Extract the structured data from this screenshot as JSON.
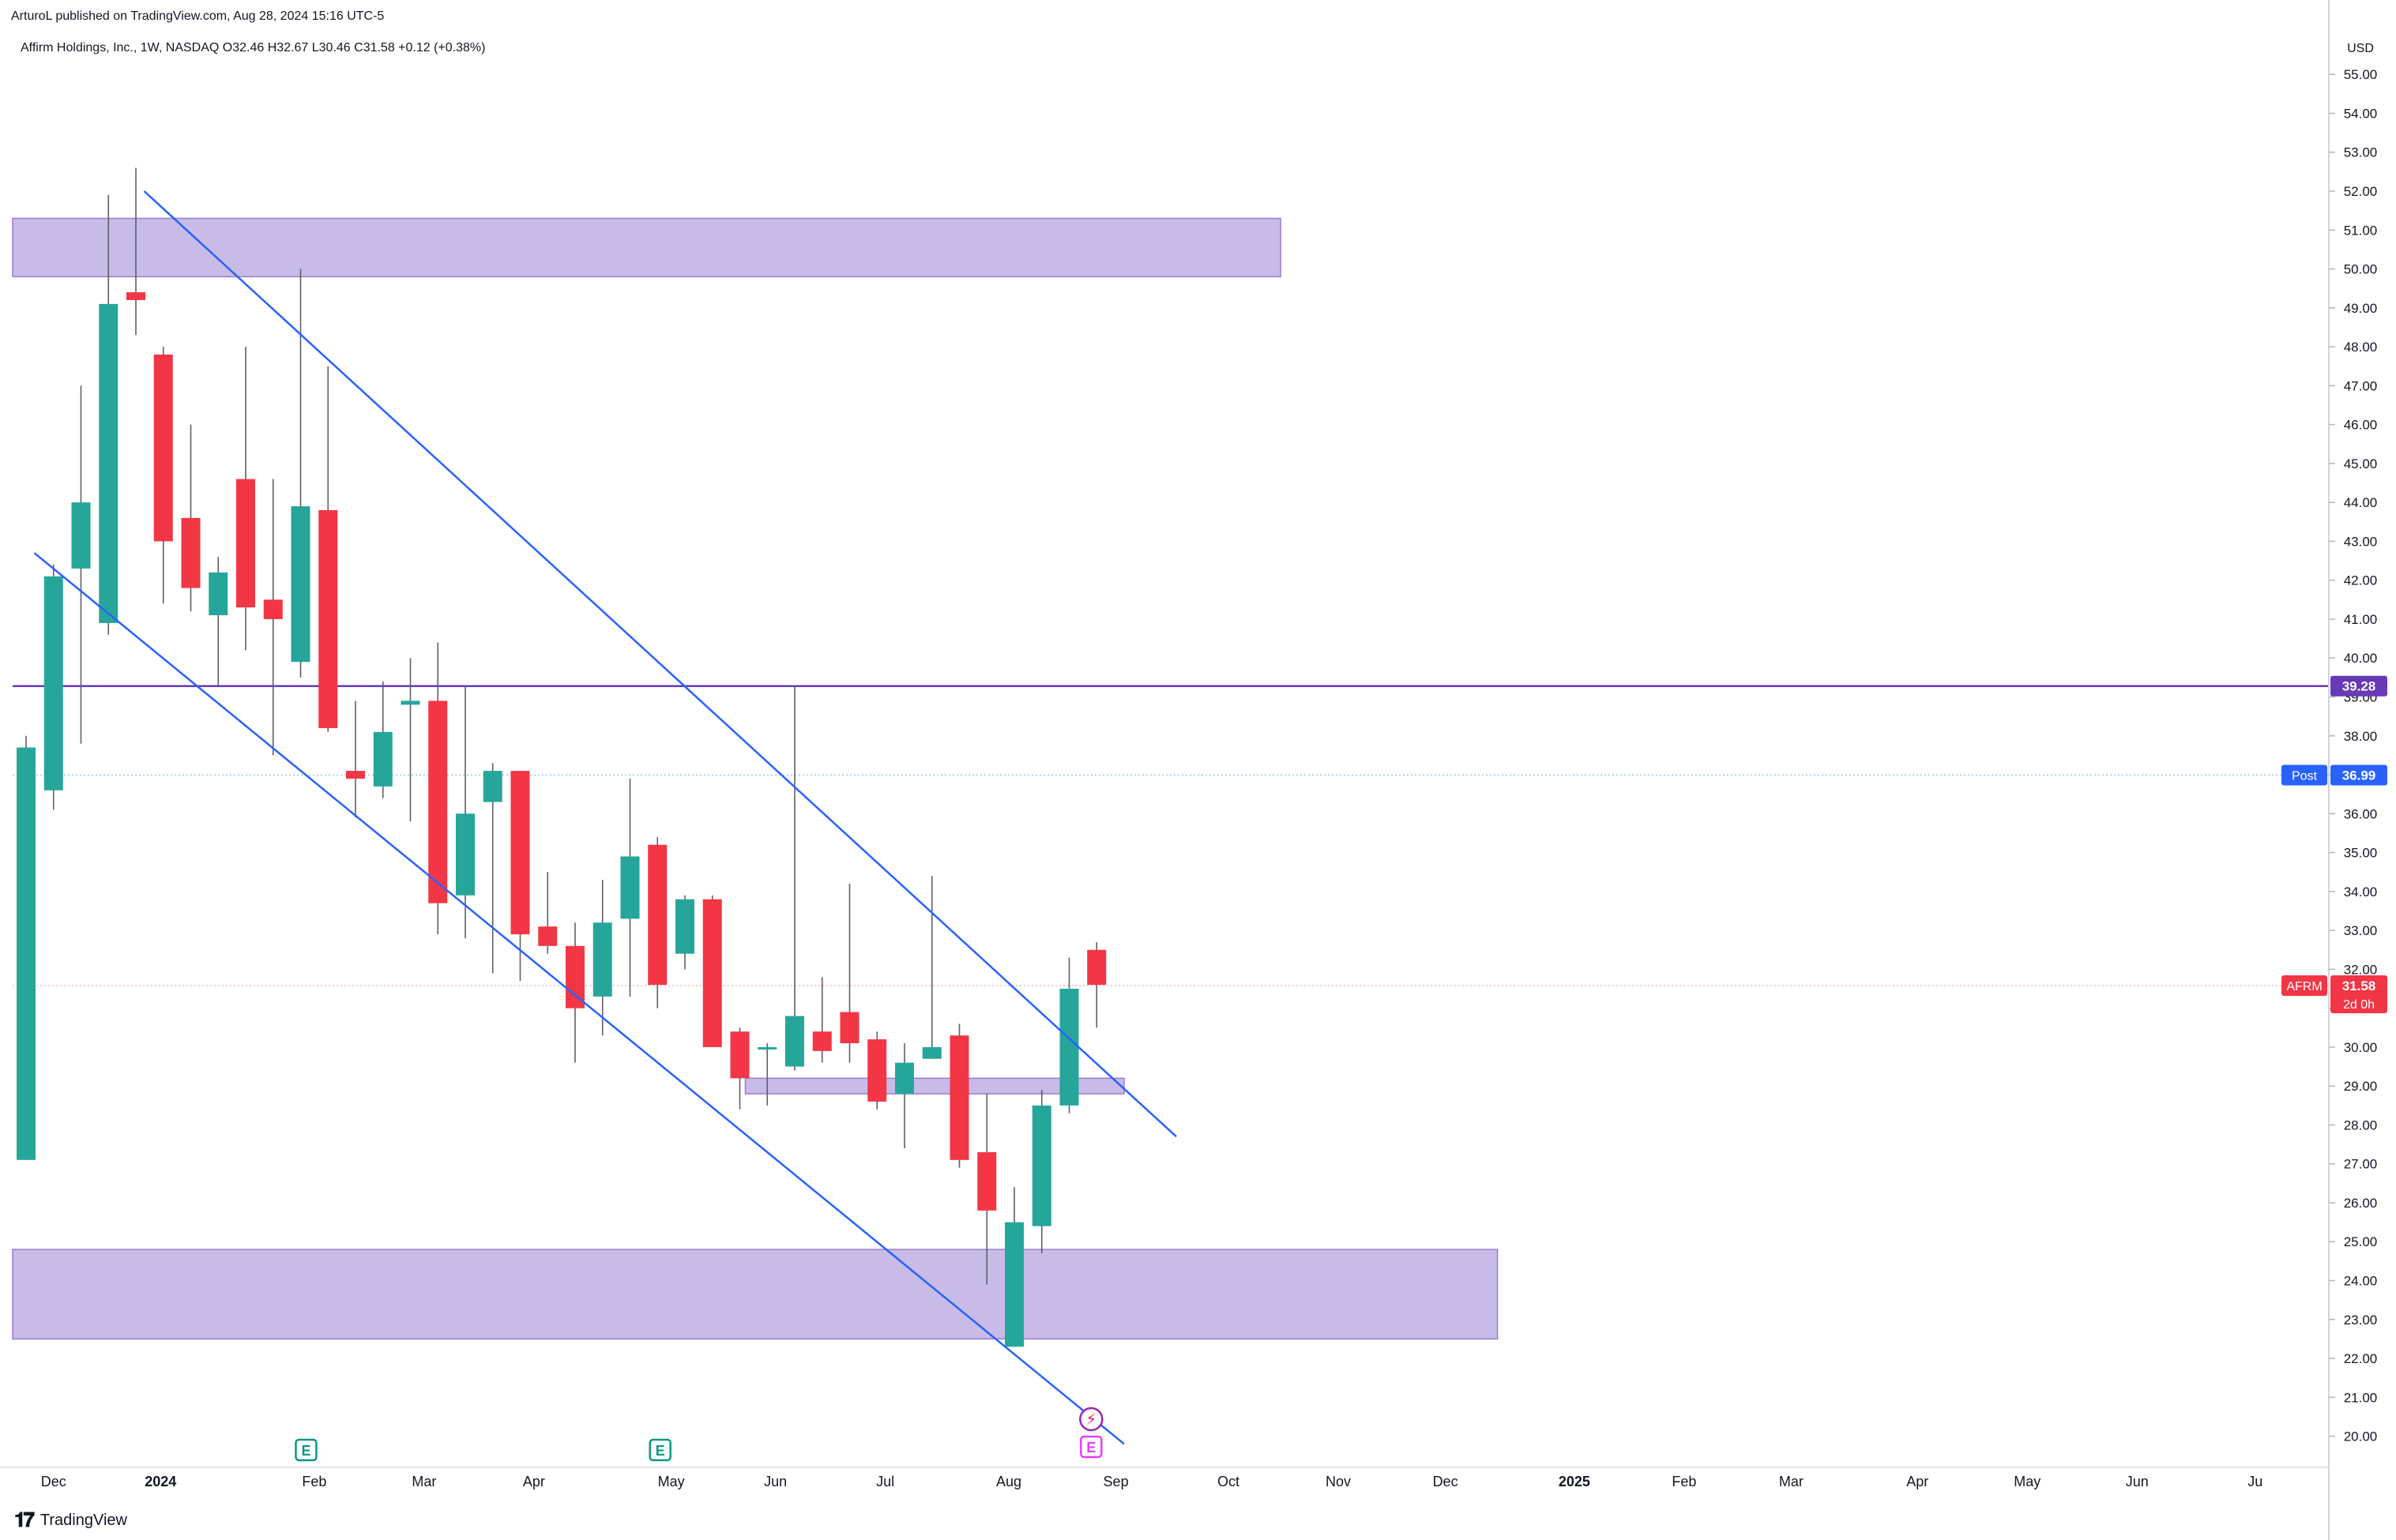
{
  "header": {
    "published": "ArturoL published on TradingView.com, Aug 28, 2024 15:16 UTC-5"
  },
  "symbol_info": "Affirm Holdings, Inc., 1W, NASDAQ  O32.46  H32.67  L30.46  C31.58  +0.12 (+0.38%)",
  "footer": {
    "logo": "𝟏𝟕",
    "brand": "TradingView"
  },
  "colors": {
    "up": "#26a69a",
    "down": "#f23645",
    "zone": "#c6b8e6",
    "zone_border": "#9575cd",
    "channel": "#2962ff",
    "level_line": "#673ab7",
    "post_line": "#a5d6ef",
    "current_line": "#f7c5c9",
    "earnings_green": "#089981",
    "earnings_pink": "#e040fb"
  },
  "chart_data": {
    "type": "candlestick",
    "symbol": "AFRM",
    "timeframe": "1W",
    "currency": "USD",
    "price_scale": {
      "ylim": [
        19.2,
        56.1
      ],
      "ticks": [
        "20.00",
        "21.00",
        "22.00",
        "23.00",
        "24.00",
        "25.00",
        "26.00",
        "27.00",
        "28.00",
        "29.00",
        "30.00",
        "31.00",
        "32.00",
        "33.00",
        "34.00",
        "35.00",
        "36.00",
        "37.00",
        "38.00",
        "39.00",
        "40.00",
        "41.00",
        "42.00",
        "43.00",
        "44.00",
        "45.00",
        "46.00",
        "47.00",
        "48.00",
        "49.00",
        "50.00",
        "51.00",
        "52.00",
        "53.00",
        "54.00",
        "55.00"
      ],
      "unit_label": "USD"
    },
    "time_axis": {
      "labels": [
        "Dec",
        "2024",
        "Feb",
        "Mar",
        "Apr",
        "May",
        "Jun",
        "Jul",
        "Aug",
        "Sep",
        "Oct",
        "Nov",
        "Dec",
        "2025",
        "Feb",
        "Mar",
        "Apr",
        "May",
        "Jun",
        "Ju"
      ],
      "bold_labels": [
        "2024",
        "2025"
      ],
      "label_week_index": [
        1,
        4.9,
        10.5,
        14.5,
        18.5,
        23.5,
        27.3,
        31.3,
        35.8,
        39.7,
        43.8,
        47.8,
        51.7,
        56.4,
        60.4,
        64.3,
        68.9,
        72.9,
        76.9,
        81.2
      ]
    },
    "candles": [
      {
        "o": 27.1,
        "h": 38.0,
        "l": 27.1,
        "c": 37.7
      },
      {
        "o": 36.6,
        "h": 42.4,
        "l": 36.1,
        "c": 42.1
      },
      {
        "o": 42.3,
        "h": 47.0,
        "l": 37.8,
        "c": 44.0
      },
      {
        "o": 40.9,
        "h": 51.9,
        "l": 40.6,
        "c": 49.1
      },
      {
        "o": 49.4,
        "h": 52.6,
        "l": 48.3,
        "c": 49.2
      },
      {
        "o": 47.8,
        "h": 48.0,
        "l": 41.4,
        "c": 43.0
      },
      {
        "o": 43.6,
        "h": 46.0,
        "l": 41.2,
        "c": 41.8
      },
      {
        "o": 41.1,
        "h": 42.6,
        "l": 39.3,
        "c": 42.2
      },
      {
        "o": 44.6,
        "h": 48.0,
        "l": 40.2,
        "c": 41.3
      },
      {
        "o": 41.5,
        "h": 44.6,
        "l": 37.5,
        "c": 41.0
      },
      {
        "o": 39.9,
        "h": 50.0,
        "l": 39.5,
        "c": 43.9
      },
      {
        "o": 43.8,
        "h": 47.5,
        "l": 38.1,
        "c": 38.2
      },
      {
        "o": 37.1,
        "h": 38.9,
        "l": 35.9,
        "c": 36.9
      },
      {
        "o": 36.7,
        "h": 39.4,
        "l": 36.4,
        "c": 38.1
      },
      {
        "o": 38.8,
        "h": 40.0,
        "l": 35.8,
        "c": 38.9
      },
      {
        "o": 38.9,
        "h": 40.4,
        "l": 32.9,
        "c": 33.7
      },
      {
        "o": 33.9,
        "h": 39.3,
        "l": 32.8,
        "c": 36.0
      },
      {
        "o": 36.3,
        "h": 37.3,
        "l": 31.9,
        "c": 37.1
      },
      {
        "o": 37.1,
        "h": 37.1,
        "l": 31.7,
        "c": 32.9
      },
      {
        "o": 33.1,
        "h": 34.5,
        "l": 32.4,
        "c": 32.6
      },
      {
        "o": 32.6,
        "h": 33.2,
        "l": 29.6,
        "c": 31.0
      },
      {
        "o": 31.3,
        "h": 34.3,
        "l": 30.3,
        "c": 33.2
      },
      {
        "o": 33.3,
        "h": 36.9,
        "l": 31.3,
        "c": 34.9
      },
      {
        "o": 35.2,
        "h": 35.4,
        "l": 31.0,
        "c": 31.6
      },
      {
        "o": 32.4,
        "h": 33.9,
        "l": 32.0,
        "c": 33.8
      },
      {
        "o": 33.8,
        "h": 33.9,
        "l": 30.0,
        "c": 30.0
      },
      {
        "o": 30.4,
        "h": 30.5,
        "l": 28.4,
        "c": 29.2
      },
      {
        "o": 30.0,
        "h": 30.1,
        "l": 28.5,
        "c": 30.0
      },
      {
        "o": 29.5,
        "h": 39.3,
        "l": 29.4,
        "c": 30.8
      },
      {
        "o": 30.4,
        "h": 31.8,
        "l": 29.6,
        "c": 29.9
      },
      {
        "o": 30.9,
        "h": 34.2,
        "l": 29.6,
        "c": 30.1
      },
      {
        "o": 30.2,
        "h": 30.4,
        "l": 28.4,
        "c": 28.6
      },
      {
        "o": 28.8,
        "h": 30.1,
        "l": 27.4,
        "c": 29.6
      },
      {
        "o": 29.7,
        "h": 34.4,
        "l": 29.7,
        "c": 30.0
      },
      {
        "o": 30.3,
        "h": 30.6,
        "l": 26.9,
        "c": 27.1
      },
      {
        "o": 27.3,
        "h": 28.8,
        "l": 23.9,
        "c": 25.8
      },
      {
        "o": 22.3,
        "h": 26.4,
        "l": 22.3,
        "c": 25.5
      },
      {
        "o": 25.4,
        "h": 28.9,
        "l": 24.7,
        "c": 28.5
      },
      {
        "o": 28.5,
        "h": 32.3,
        "l": 28.3,
        "c": 31.5
      },
      {
        "o": 32.5,
        "h": 32.7,
        "l": 30.5,
        "c": 31.6
      }
    ],
    "zones": [
      {
        "name": "supply-zone-top",
        "from_week": 0,
        "to_week": 45.7,
        "low": 49.8,
        "high": 51.3
      },
      {
        "name": "demand-zone-bottom",
        "from_week": 0,
        "to_week": 53.6,
        "low": 22.5,
        "high": 24.8
      },
      {
        "name": "breakout-zone",
        "from_week": 26.2,
        "to_week": 40.0,
        "low": 28.8,
        "high": 29.2
      }
    ],
    "channel_lines": [
      {
        "name": "upper-channel-line",
        "w1": 4.3,
        "p1": 52.0,
        "w2": 41.9,
        "p2": 27.7
      },
      {
        "name": "lower-channel-line",
        "w1": 0.3,
        "p1": 42.7,
        "w2": 40.0,
        "p2": 19.8
      }
    ],
    "horizontal_levels": [
      {
        "name": "resistance-level",
        "price": 39.28,
        "label": "39.28",
        "style": "solid"
      },
      {
        "name": "post-market-level",
        "price": 36.99,
        "label": "36.99",
        "tag": "Post",
        "style": "dotted"
      },
      {
        "name": "current-price-level",
        "price": 31.58,
        "label": "31.58",
        "tag": "AFRM",
        "countdown": "2d 0h",
        "style": "dotted"
      }
    ],
    "markers": [
      {
        "name": "earnings-marker-feb",
        "week": 10.2,
        "letter": "E",
        "kind": "past"
      },
      {
        "name": "earnings-marker-may",
        "week": 23.1,
        "letter": "E",
        "kind": "past"
      },
      {
        "name": "earnings-marker-aug",
        "week": 38.8,
        "letter": "E",
        "kind": "upcoming"
      },
      {
        "name": "dividend-split-marker",
        "week": 38.8,
        "letter": "⚡",
        "kind": "event"
      }
    ]
  }
}
